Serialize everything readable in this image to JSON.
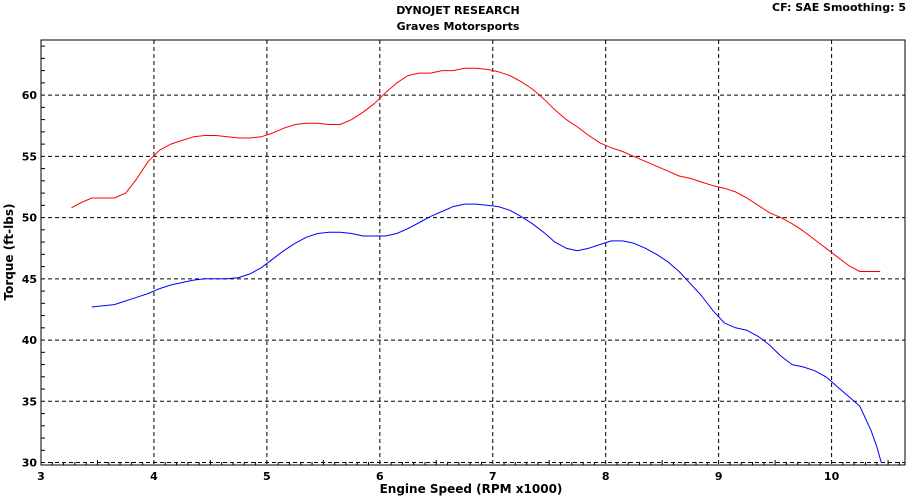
{
  "header": {
    "title": "DYNOJET RESEARCH",
    "subtitle": "Graves Motorsports",
    "settings": "CF: SAE  Smoothing: 5"
  },
  "chart_data": {
    "type": "line",
    "title": "DYNOJET RESEARCH",
    "subtitle": "Graves Motorsports",
    "xlabel": "Engine Speed (RPM x1000)",
    "ylabel": "Torque (ft-lbs)",
    "xlim": [
      3,
      10.65
    ],
    "ylim": [
      29.8,
      64.5
    ],
    "x_ticks": [
      3,
      4,
      5,
      6,
      7,
      8,
      9,
      10
    ],
    "y_ticks": [
      30,
      35,
      40,
      45,
      50,
      55,
      60
    ],
    "grid": true,
    "series": [
      {
        "color": "#ff0000",
        "x": [
          3.27,
          3.35,
          3.45,
          3.55,
          3.65,
          3.75,
          3.85,
          3.95,
          4.05,
          4.15,
          4.25,
          4.35,
          4.45,
          4.55,
          4.65,
          4.75,
          4.85,
          4.95,
          5.05,
          5.15,
          5.25,
          5.35,
          5.45,
          5.55,
          5.65,
          5.75,
          5.85,
          5.95,
          6.05,
          6.15,
          6.25,
          6.35,
          6.45,
          6.55,
          6.65,
          6.75,
          6.85,
          6.95,
          7.05,
          7.15,
          7.25,
          7.35,
          7.45,
          7.55,
          7.65,
          7.75,
          7.85,
          7.95,
          8.05,
          8.15,
          8.25,
          8.35,
          8.45,
          8.55,
          8.65,
          8.75,
          8.85,
          8.95,
          9.05,
          9.15,
          9.25,
          9.35,
          9.45,
          9.55,
          9.65,
          9.75,
          9.85,
          9.95,
          10.05,
          10.15,
          10.25,
          10.35,
          10.43
        ],
        "values": [
          50.8,
          51.2,
          51.6,
          51.6,
          51.6,
          52.0,
          53.2,
          54.6,
          55.5,
          56.0,
          56.3,
          56.6,
          56.7,
          56.7,
          56.6,
          56.5,
          56.5,
          56.6,
          56.9,
          57.3,
          57.6,
          57.7,
          57.7,
          57.6,
          57.6,
          58.0,
          58.6,
          59.3,
          60.2,
          61.0,
          61.6,
          61.8,
          61.8,
          62.0,
          62.0,
          62.2,
          62.2,
          62.1,
          61.9,
          61.6,
          61.1,
          60.5,
          59.7,
          58.8,
          58.0,
          57.4,
          56.7,
          56.1,
          55.7,
          55.4,
          55.0,
          54.6,
          54.2,
          53.8,
          53.4,
          53.2,
          52.9,
          52.6,
          52.4,
          52.1,
          51.6,
          51.0,
          50.4,
          50.0,
          49.5,
          48.9,
          48.2,
          47.5,
          46.8,
          46.1,
          45.6,
          45.6,
          45.6
        ]
      },
      {
        "color": "#0000ff",
        "x": [
          3.45,
          3.55,
          3.65,
          3.75,
          3.85,
          3.95,
          4.05,
          4.15,
          4.25,
          4.35,
          4.45,
          4.55,
          4.65,
          4.75,
          4.85,
          4.95,
          5.05,
          5.15,
          5.25,
          5.35,
          5.45,
          5.55,
          5.65,
          5.75,
          5.85,
          5.95,
          6.05,
          6.15,
          6.25,
          6.35,
          6.45,
          6.55,
          6.65,
          6.75,
          6.85,
          6.95,
          7.05,
          7.15,
          7.25,
          7.35,
          7.45,
          7.55,
          7.65,
          7.75,
          7.85,
          7.95,
          8.05,
          8.15,
          8.25,
          8.35,
          8.45,
          8.55,
          8.65,
          8.75,
          8.85,
          8.95,
          9.05,
          9.15,
          9.25,
          9.35,
          9.45,
          9.55,
          9.65,
          9.75,
          9.85,
          9.95,
          10.05,
          10.15,
          10.25,
          10.3,
          10.35,
          10.4,
          10.44
        ],
        "values": [
          42.7,
          42.8,
          42.9,
          43.2,
          43.5,
          43.8,
          44.2,
          44.5,
          44.7,
          44.9,
          45.0,
          45.0,
          45.0,
          45.1,
          45.4,
          45.9,
          46.6,
          47.3,
          47.9,
          48.4,
          48.7,
          48.8,
          48.8,
          48.7,
          48.5,
          48.5,
          48.5,
          48.7,
          49.1,
          49.6,
          50.1,
          50.5,
          50.9,
          51.1,
          51.1,
          51.0,
          50.9,
          50.6,
          50.1,
          49.5,
          48.8,
          48.0,
          47.5,
          47.3,
          47.5,
          47.8,
          48.1,
          48.1,
          47.9,
          47.5,
          47.0,
          46.4,
          45.6,
          44.6,
          43.6,
          42.4,
          41.4,
          41.0,
          40.8,
          40.3,
          39.6,
          38.7,
          38.0,
          37.8,
          37.5,
          37.0,
          36.2,
          35.4,
          34.6,
          33.6,
          32.6,
          31.3,
          30.0
        ]
      }
    ]
  }
}
